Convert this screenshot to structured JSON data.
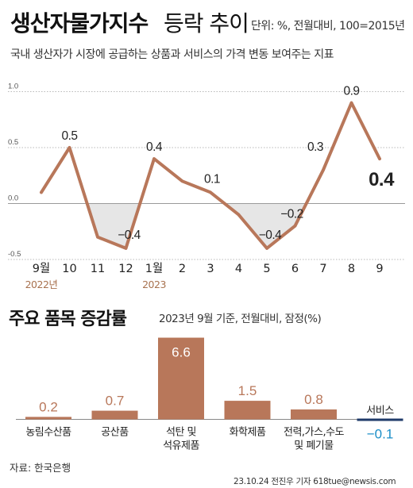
{
  "title": "생산자물가지수",
  "title_suffix": "등락 추이",
  "unit_note": "단위: %, 전월대비, 100=2015년",
  "description": "국내 생산자가 시장에 공급하는 상품과 서비스의 가격 변동 보여주는 지표",
  "section2": {
    "title": "주요 품목 증감률",
    "subtitle": "2023년 9월 기준, 전월대비, 잠정(%)"
  },
  "source": "자료: 한국은행",
  "credit": "23.10.24 전진우 기자 618tue@newsis.com",
  "watermark": "NEWSIS",
  "colors": {
    "line": "#b8775a",
    "bar": "#b8775a",
    "negative_bar": "#1f3a6a",
    "negative_label": "#1a8ec8",
    "year_label": "#a8724f",
    "fill_pos": "#ffffff",
    "fill_neg": "#e6e6e6",
    "grid": "#b8b8b8"
  },
  "chart_data": [
    {
      "type": "line",
      "x": [
        "9월",
        "10",
        "11",
        "12",
        "1월",
        "2",
        "3",
        "4",
        "5",
        "6",
        "7",
        "8",
        "9"
      ],
      "year_labels": [
        {
          "at": "9월",
          "text": "2022년"
        },
        {
          "at": "1월",
          "text": "2023"
        }
      ],
      "series": [
        {
          "values": [
            0.1,
            0.5,
            -0.3,
            -0.4,
            0.4,
            0.2,
            0.1,
            -0.1,
            -0.4,
            -0.2,
            0.3,
            0.9,
            0.4
          ]
        }
      ],
      "data_labels": [
        {
          "index": 1,
          "text": "0.5"
        },
        {
          "index": 3,
          "text": "−0.4"
        },
        {
          "index": 4,
          "text": "0.4"
        },
        {
          "index": 6,
          "text": "0.1"
        },
        {
          "index": 8,
          "text": "−0.4"
        },
        {
          "index": 9,
          "text": "−0.2"
        },
        {
          "index": 10,
          "text": "0.3"
        },
        {
          "index": 11,
          "text": "0.9"
        },
        {
          "index": 12,
          "text": "0.4",
          "emphasis": true
        }
      ],
      "yticks": [
        "1.0",
        "0.5",
        "0.0",
        "-0.5"
      ],
      "ytick_values": [
        1.0,
        0.5,
        0.0,
        -0.5
      ],
      "ylim": [
        -0.5,
        1.0
      ],
      "grid": true
    },
    {
      "type": "bar",
      "categories": [
        [
          "농림수산품"
        ],
        [
          "공산품"
        ],
        [
          "석탄 및",
          "석유제품"
        ],
        [
          "화학제품"
        ],
        [
          "전력,가스,수도",
          "및 폐기물"
        ],
        [
          "서비스"
        ]
      ],
      "values": [
        0.2,
        0.7,
        6.6,
        1.5,
        0.8,
        -0.1
      ],
      "value_labels": [
        "0.2",
        "0.7",
        "6.6",
        "1.5",
        "0.8",
        "−0.1"
      ],
      "ylim": [
        -0.1,
        6.6
      ]
    }
  ]
}
